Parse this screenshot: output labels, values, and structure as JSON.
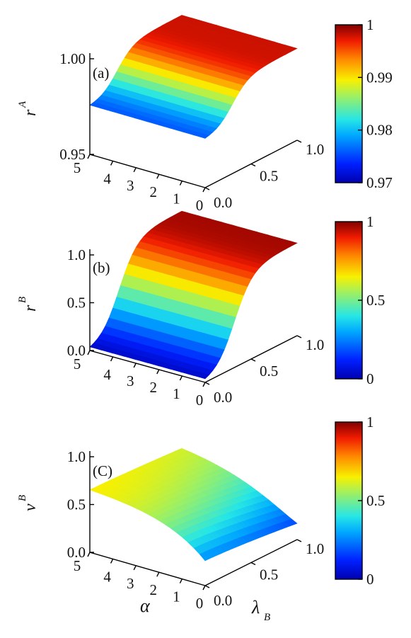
{
  "chart_data": [
    {
      "type": "surface",
      "panel_label": "(a)",
      "zlabel": "r",
      "zlabel_sup": "A",
      "xlabel": "",
      "ylabel": "",
      "alpha_ticks": [
        "5",
        "4",
        "3",
        "2",
        "1",
        "0"
      ],
      "lambda_ticks": [
        "0.0",
        "0.5",
        "1.0"
      ],
      "z_ticks": [
        "0.95",
        "1.00"
      ],
      "zlim": [
        0.95,
        1.0
      ],
      "colorbar": {
        "ticks": [
          "0.97",
          "0.98",
          "0.99",
          "1"
        ],
        "range": [
          0.97,
          1.0
        ]
      },
      "alpha_range": [
        0,
        5
      ],
      "lambda_range": [
        0,
        1
      ],
      "surface": {
        "description_formula": "steps from ~0.975 at small lambda_B to ~0.998 at large lambda_B",
        "z_low": 0.975,
        "z_high": 0.998,
        "transition_lambda": 0.3,
        "transition_width": 0.09,
        "alpha_dependence": 0.0
      }
    },
    {
      "type": "surface",
      "panel_label": "(b)",
      "zlabel": "r",
      "zlabel_sup": "B",
      "xlabel": "",
      "ylabel": "",
      "alpha_ticks": [
        "5",
        "4",
        "3",
        "2",
        "1",
        "0"
      ],
      "lambda_ticks": [
        "0.0",
        "0.5",
        "1.0"
      ],
      "z_ticks": [
        "0.0",
        "0.5",
        "1.0"
      ],
      "zlim": [
        0.0,
        1.0
      ],
      "colorbar": {
        "ticks": [
          "0",
          "0.5",
          "1"
        ],
        "range": [
          0.0,
          1.0
        ]
      },
      "alpha_range": [
        0,
        5
      ],
      "lambda_range": [
        0,
        1
      ],
      "surface": {
        "description_formula": "rises from 0 at small lambda_B to ~0.97 at large lambda_B",
        "z_low": 0.0,
        "z_high": 0.97,
        "transition_lambda": 0.32,
        "transition_width": 0.1,
        "alpha_dependence": 0.0
      }
    },
    {
      "type": "surface",
      "panel_label": "(C)",
      "zlabel": "v",
      "zlabel_sup": "B",
      "xlabel": "α",
      "ylabel": "λ",
      "ylabel_sub": "B",
      "alpha_ticks": [
        "5",
        "4",
        "3",
        "2",
        "1",
        "0"
      ],
      "lambda_ticks": [
        "0.0",
        "0.5",
        "1.0"
      ],
      "z_ticks": [
        "0.0",
        "0.5",
        "1.0"
      ],
      "zlim": [
        0.0,
        1.0
      ],
      "colorbar": {
        "ticks": [
          "0",
          "0.5",
          "1"
        ],
        "range": [
          0.0,
          1.0
        ]
      },
      "alpha_range": [
        0,
        5
      ],
      "lambda_range": [
        0,
        1
      ],
      "surface": {
        "description_formula": "~0.68 at large alpha decreasing toward small alpha, dropping near alpha=0",
        "z_high": 0.68,
        "z_min_edge": 0.12,
        "alpha_decay": 0.55,
        "lambda_decay": 0.35
      }
    }
  ]
}
